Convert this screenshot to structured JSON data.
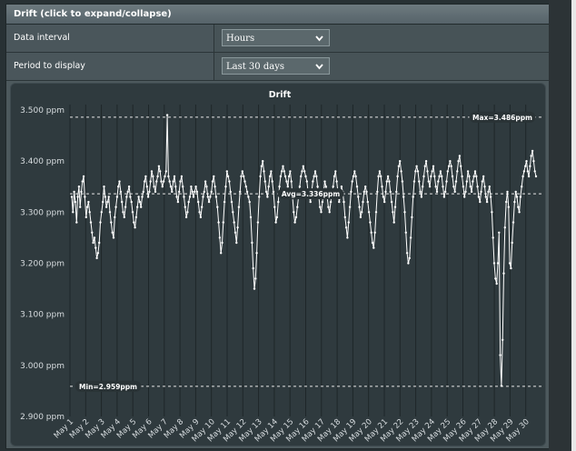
{
  "panel": {
    "title": "Drift (click to expand/collapse)",
    "rows": [
      {
        "label": "Data interval",
        "value": "Hours"
      },
      {
        "label": "Period to display",
        "value": "Last 30 days"
      }
    ]
  },
  "chart_data": {
    "type": "line",
    "title": "Drift",
    "y_ticks": [
      "2.900 ppm",
      "3.000 ppm",
      "3.100 ppm",
      "3.200 ppm",
      "3.300 ppm",
      "3.400 ppm",
      "3.500 ppm"
    ],
    "y_tick_values": [
      2.9,
      3.0,
      3.1,
      3.2,
      3.3,
      3.4,
      3.5
    ],
    "ylim": [
      2.9,
      3.5
    ],
    "x_labels": [
      "May 1",
      "May 2",
      "May 3",
      "May 4",
      "May 5",
      "May 6",
      "May 7",
      "May 8",
      "May 9",
      "May 10",
      "May 11",
      "May 12",
      "May 13",
      "May 14",
      "May 15",
      "May 16",
      "May 17",
      "May 18",
      "May 19",
      "May 20",
      "May 21",
      "May 22",
      "May 23",
      "May 24",
      "May 25",
      "May 26",
      "May 27",
      "May 28",
      "May 29",
      "May 30"
    ],
    "annotations": {
      "max": {
        "label": "Max=3.486ppm",
        "value": 3.486
      },
      "avg": {
        "label": "Avg=3.336ppm",
        "value": 3.336
      },
      "min": {
        "label": "Min=2.959ppm",
        "value": 2.959
      }
    },
    "series": [
      {
        "values": [
          3.33,
          3.3,
          3.34,
          3.32,
          3.28,
          3.33,
          3.35,
          3.31,
          3.34,
          3.36,
          3.37,
          3.33,
          3.29,
          3.31,
          3.32,
          3.3,
          3.28,
          3.26,
          3.24,
          3.25,
          3.23,
          3.21,
          3.22,
          3.24,
          3.28,
          3.3,
          3.32,
          3.35,
          3.33,
          3.31,
          3.32,
          3.33,
          3.3,
          3.28,
          3.26,
          3.25,
          3.29,
          3.31,
          3.33,
          3.35,
          3.36,
          3.34,
          3.32,
          3.3,
          3.29,
          3.31,
          3.33,
          3.34,
          3.35,
          3.33,
          3.32,
          3.3,
          3.28,
          3.27,
          3.29,
          3.31,
          3.33,
          3.32,
          3.31,
          3.33,
          3.34,
          3.36,
          3.37,
          3.35,
          3.33,
          3.34,
          3.36,
          3.38,
          3.37,
          3.35,
          3.34,
          3.36,
          3.37,
          3.39,
          3.38,
          3.36,
          3.35,
          3.36,
          3.37,
          3.38,
          3.49,
          3.37,
          3.36,
          3.35,
          3.34,
          3.36,
          3.37,
          3.35,
          3.33,
          3.32,
          3.34,
          3.36,
          3.37,
          3.35,
          3.33,
          3.31,
          3.29,
          3.3,
          3.32,
          3.33,
          3.35,
          3.34,
          3.33,
          3.34,
          3.35,
          3.34,
          3.32,
          3.3,
          3.29,
          3.31,
          3.33,
          3.34,
          3.36,
          3.35,
          3.33,
          3.32,
          3.33,
          3.34,
          3.36,
          3.37,
          3.35,
          3.33,
          3.31,
          3.28,
          3.25,
          3.22,
          3.24,
          3.28,
          3.32,
          3.35,
          3.38,
          3.37,
          3.36,
          3.34,
          3.32,
          3.3,
          3.28,
          3.26,
          3.24,
          3.27,
          3.31,
          3.34,
          3.37,
          3.38,
          3.37,
          3.36,
          3.35,
          3.34,
          3.33,
          3.32,
          3.29,
          3.24,
          3.19,
          3.15,
          3.17,
          3.22,
          3.28,
          3.33,
          3.37,
          3.39,
          3.4,
          3.38,
          3.36,
          3.34,
          3.33,
          3.35,
          3.37,
          3.38,
          3.36,
          3.34,
          3.31,
          3.28,
          3.29,
          3.32,
          3.35,
          3.37,
          3.38,
          3.39,
          3.38,
          3.37,
          3.36,
          3.35,
          3.37,
          3.38,
          3.36,
          3.33,
          3.3,
          3.28,
          3.29,
          3.31,
          3.33,
          3.35,
          3.37,
          3.38,
          3.39,
          3.38,
          3.37,
          3.36,
          3.34,
          3.33,
          3.32,
          3.34,
          3.36,
          3.37,
          3.38,
          3.37,
          3.35,
          3.33,
          3.31,
          3.3,
          3.32,
          3.34,
          3.36,
          3.35,
          3.33,
          3.31,
          3.3,
          3.32,
          3.34,
          3.35,
          3.37,
          3.38,
          3.36,
          3.34,
          3.32,
          3.33,
          3.35,
          3.34,
          3.32,
          3.29,
          3.27,
          3.25,
          3.28,
          3.31,
          3.34,
          3.36,
          3.37,
          3.38,
          3.37,
          3.35,
          3.33,
          3.31,
          3.29,
          3.3,
          3.32,
          3.34,
          3.35,
          3.34,
          3.32,
          3.3,
          3.28,
          3.26,
          3.24,
          3.23,
          3.26,
          3.3,
          3.34,
          3.37,
          3.38,
          3.37,
          3.35,
          3.33,
          3.32,
          3.34,
          3.36,
          3.37,
          3.36,
          3.34,
          3.32,
          3.3,
          3.28,
          3.31,
          3.34,
          3.37,
          3.39,
          3.4,
          3.38,
          3.36,
          3.33,
          3.3,
          3.26,
          3.22,
          3.2,
          3.21,
          3.25,
          3.29,
          3.33,
          3.36,
          3.38,
          3.39,
          3.38,
          3.36,
          3.34,
          3.33,
          3.35,
          3.37,
          3.39,
          3.4,
          3.38,
          3.36,
          3.35,
          3.37,
          3.38,
          3.39,
          3.37,
          3.35,
          3.34,
          3.36,
          3.37,
          3.38,
          3.37,
          3.35,
          3.33,
          3.34,
          3.36,
          3.38,
          3.39,
          3.4,
          3.39,
          3.37,
          3.35,
          3.34,
          3.36,
          3.38,
          3.4,
          3.41,
          3.39,
          3.37,
          3.35,
          3.33,
          3.34,
          3.36,
          3.38,
          3.37,
          3.35,
          3.34,
          3.36,
          3.37,
          3.38,
          3.37,
          3.35,
          3.33,
          3.32,
          3.34,
          3.36,
          3.37,
          3.35,
          3.33,
          3.32,
          3.34,
          3.35,
          3.33,
          3.3,
          3.25,
          3.2,
          3.17,
          3.16,
          3.2,
          3.26,
          3.02,
          2.96,
          3.05,
          3.18,
          3.27,
          3.32,
          3.34,
          3.31,
          3.2,
          3.19,
          3.24,
          3.28,
          3.32,
          3.34,
          3.33,
          3.31,
          3.3,
          3.33,
          3.35,
          3.37,
          3.38,
          3.39,
          3.4,
          3.38,
          3.37,
          3.39,
          3.41,
          3.42,
          3.4,
          3.38,
          3.37
        ]
      }
    ]
  }
}
